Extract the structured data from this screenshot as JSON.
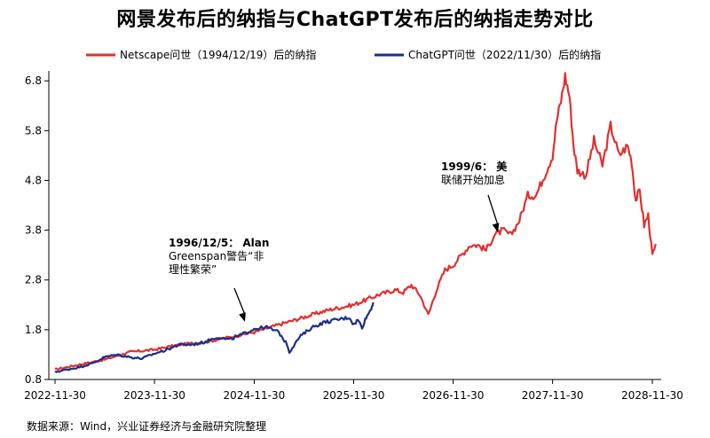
{
  "chart_data": {
    "type": "line",
    "title": "网景发布后的纳指与ChatGPT发布后的纳指走势对比",
    "xlabel": "",
    "ylabel": "",
    "ylim": [
      0.8,
      7.0
    ],
    "yticks": [
      "0.8",
      "1.8",
      "2.8",
      "3.8",
      "4.8",
      "5.8",
      "6.8"
    ],
    "xticks": [
      "2022-11-30",
      "2023-11-30",
      "2024-11-30",
      "2025-11-30",
      "2026-11-30",
      "2027-11-30",
      "2028-11-30"
    ],
    "grid": false,
    "legend_position": "top",
    "series": [
      {
        "name": "Netscape问世（1994/12/19）后的纳指",
        "color": "#e03030",
        "x": [
          "2022-11-30",
          "2023-02-28",
          "2023-05-31",
          "2023-08-31",
          "2023-11-30",
          "2024-02-29",
          "2024-05-31",
          "2024-08-31",
          "2024-11-30",
          "2025-02-28",
          "2025-05-31",
          "2025-08-31",
          "2025-11-30",
          "2026-02-28",
          "2026-03-31",
          "2026-04-30",
          "2026-05-31",
          "2026-06-30",
          "2026-07-31",
          "2026-08-31",
          "2026-09-30",
          "2026-10-31",
          "2026-11-30",
          "2026-12-31",
          "2027-01-31",
          "2027-02-28",
          "2027-03-31",
          "2027-04-30",
          "2027-05-31",
          "2027-06-30",
          "2027-07-31",
          "2027-08-31",
          "2027-09-30",
          "2027-10-31",
          "2027-11-30",
          "2027-12-15",
          "2027-12-31",
          "2028-01-15",
          "2028-01-31",
          "2028-02-15",
          "2028-02-29",
          "2028-03-31",
          "2028-04-30",
          "2028-05-31",
          "2028-06-30",
          "2028-07-31",
          "2028-08-31",
          "2028-09-15",
          "2028-09-30",
          "2028-10-15",
          "2028-10-31",
          "2028-11-15",
          "2028-11-30",
          "2028-12-15"
        ],
        "values": [
          1.0,
          1.1,
          1.2,
          1.35,
          1.4,
          1.5,
          1.55,
          1.65,
          1.75,
          1.9,
          2.05,
          2.2,
          2.3,
          2.5,
          2.55,
          2.6,
          2.55,
          2.7,
          2.5,
          2.1,
          2.6,
          3.0,
          3.1,
          3.3,
          3.5,
          3.5,
          3.4,
          3.7,
          3.8,
          3.7,
          4.0,
          4.5,
          4.5,
          4.9,
          5.3,
          6.0,
          6.4,
          6.9,
          6.5,
          5.5,
          5.0,
          4.9,
          5.6,
          5.1,
          5.9,
          5.3,
          5.5,
          5.2,
          4.4,
          4.6,
          3.9,
          4.1,
          3.3,
          3.5
        ]
      },
      {
        "name": "ChatGPT问世（2022/11/30）后的纳指",
        "color": "#1a2f8a",
        "x": [
          "2022-11-30",
          "2023-01-15",
          "2023-02-28",
          "2023-04-15",
          "2023-05-31",
          "2023-07-15",
          "2023-08-31",
          "2023-10-15",
          "2023-11-30",
          "2024-01-15",
          "2024-02-29",
          "2024-04-15",
          "2024-05-31",
          "2024-07-15",
          "2024-08-31",
          "2024-10-15",
          "2024-11-30",
          "2025-01-15",
          "2025-02-28",
          "2025-03-31",
          "2025-04-08",
          "2025-05-15",
          "2025-06-30",
          "2025-08-15",
          "2025-09-30",
          "2025-11-15",
          "2025-11-30",
          "2025-12-15",
          "2025-12-31",
          "2026-01-15",
          "2026-01-31",
          "2026-02-10"
        ],
        "values": [
          0.95,
          1.0,
          1.05,
          1.12,
          1.25,
          1.3,
          1.25,
          1.22,
          1.32,
          1.4,
          1.5,
          1.5,
          1.55,
          1.65,
          1.6,
          1.7,
          1.82,
          1.85,
          1.75,
          1.5,
          1.35,
          1.65,
          1.85,
          1.95,
          2.0,
          2.05,
          1.9,
          2.0,
          1.85,
          2.05,
          2.2,
          2.35
        ]
      }
    ],
    "annotations": [
      {
        "lines": [
          "1996/12/5： Alan",
          "Greenspan警告“非",
          "理性繁荣”"
        ],
        "x": "2024-12-05",
        "y": 1.8
      },
      {
        "lines": [
          "1999/6： 美",
          "联储开始加息"
        ],
        "x": "2027-06-15",
        "y": 3.6
      }
    ]
  },
  "source": "数据来源：Wind，兴业证券经济与金融研究院整理"
}
